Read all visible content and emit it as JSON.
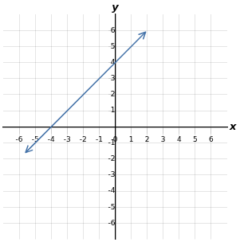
{
  "chart_data": {
    "type": "line",
    "x": [
      -5.6,
      1.9
    ],
    "values": [
      -1.6,
      5.9
    ],
    "color": "#4472a8",
    "marker": "arrow",
    "xlabel": "x",
    "ylabel": "y",
    "xlim": [
      -7,
      7
    ],
    "ylim": [
      -7,
      7
    ],
    "xticks": [
      -6,
      -5,
      -4,
      -3,
      -2,
      -1,
      0,
      1,
      2,
      3,
      4,
      5,
      6
    ],
    "yticks": [
      -6,
      -5,
      -4,
      -3,
      -2,
      -1,
      1,
      2,
      3,
      4,
      5,
      6
    ],
    "grid": true
  }
}
